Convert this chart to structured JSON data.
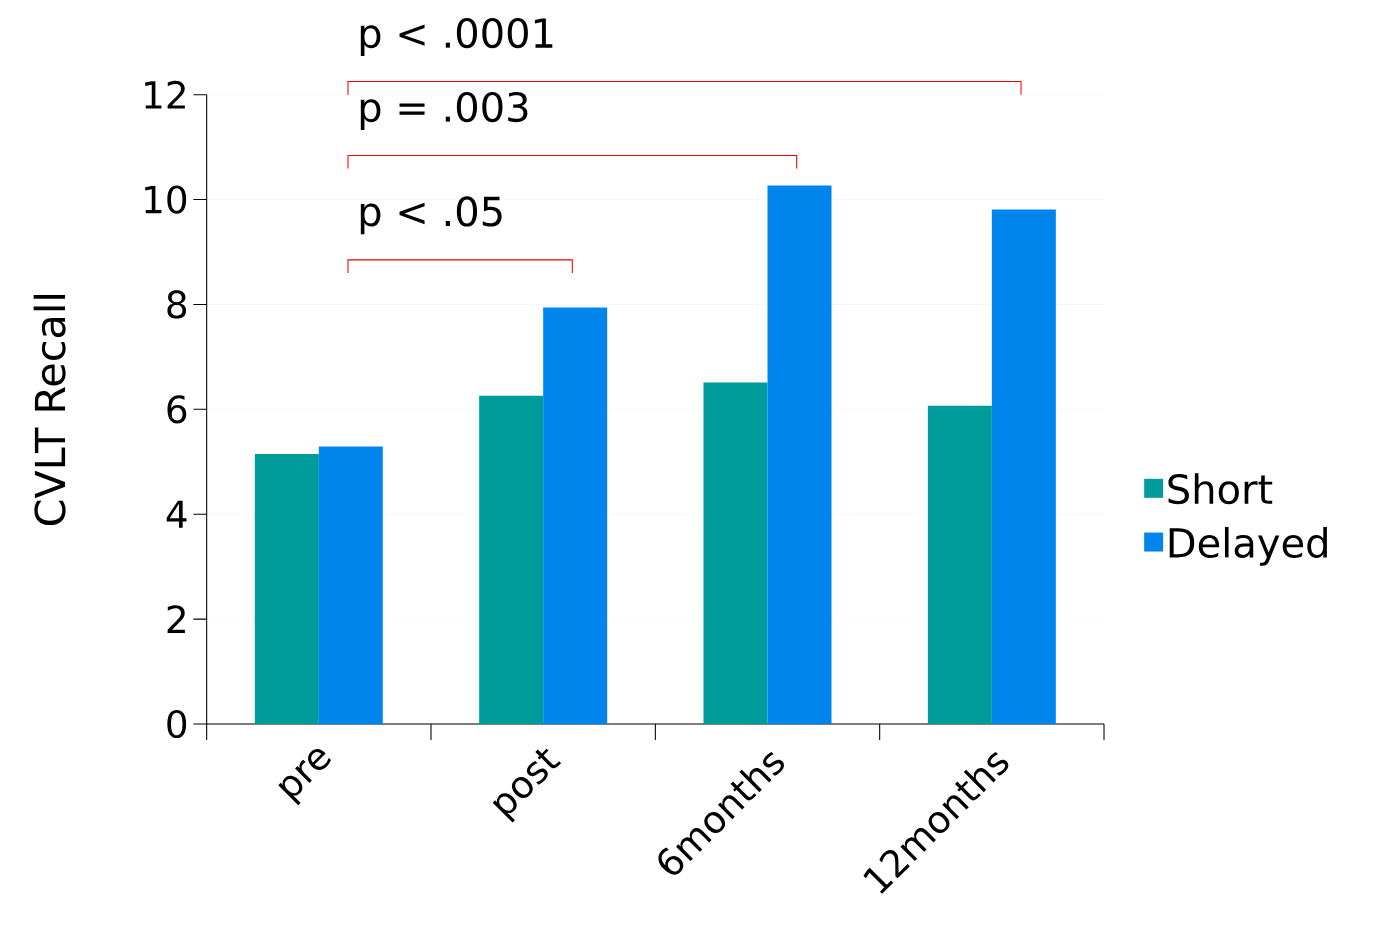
{
  "chart_data": {
    "type": "bar",
    "ylabel": "CVLT Recall",
    "categories": [
      "pre",
      "post",
      "6months",
      "12months"
    ],
    "series": [
      {
        "name": "Short",
        "color": "#009c9c",
        "values": [
          5.15,
          6.26,
          6.51,
          6.07
        ]
      },
      {
        "name": "Delayed",
        "color": "#0085ec",
        "values": [
          5.29,
          7.94,
          10.27,
          9.81
        ]
      }
    ],
    "ylim": [
      0,
      12
    ],
    "yticks": [
      0,
      2,
      4,
      6,
      8,
      10,
      12
    ],
    "grid": "y",
    "legend": "right",
    "annotations": [
      "p < .0001",
      "p = .003",
      "p < .05"
    ]
  }
}
